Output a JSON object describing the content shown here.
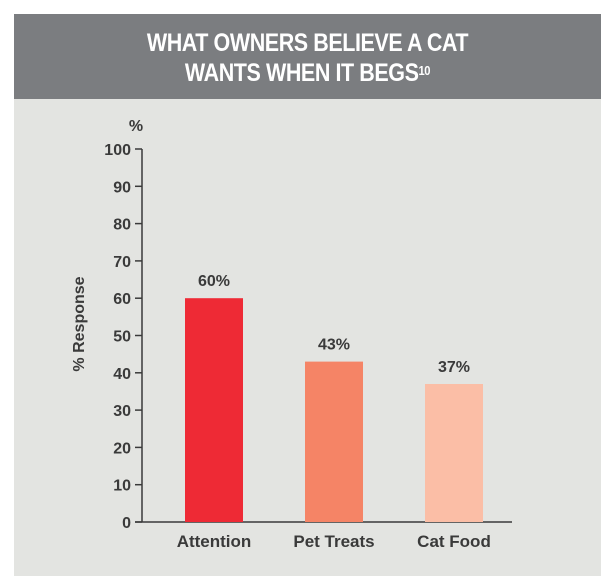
{
  "chart_data": {
    "type": "bar",
    "title_line1": "WHAT OWNERS BELIEVE A CAT",
    "title_line2": "WANTS WHEN IT BEGS",
    "title_superscript": "10",
    "ylabel": "% Response",
    "yunit": "%",
    "ylim": [
      0,
      100
    ],
    "yticks": [
      "0",
      "10",
      "20",
      "30",
      "40",
      "50",
      "60",
      "70",
      "80",
      "90",
      "100"
    ],
    "categories": [
      "Attention",
      "Pet Treats",
      "Cat Food"
    ],
    "values": [
      60,
      43,
      37
    ],
    "data_labels": [
      "60%",
      "43%",
      "37%"
    ],
    "colors": [
      "#ee2a35",
      "#f58466",
      "#fbbea6"
    ],
    "grid": false
  }
}
